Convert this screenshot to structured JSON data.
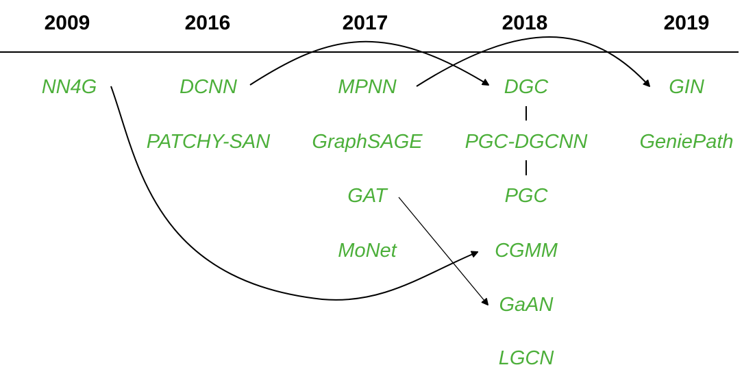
{
  "colors": {
    "model_text": "#4caf3a",
    "year_text": "#000000",
    "lines": "#000000"
  },
  "years": [
    "2009",
    "2016",
    "2017",
    "2018",
    "2019"
  ],
  "models": {
    "y2009": [
      "NN4G"
    ],
    "y2016": [
      "DCNN",
      "PATCHY-SAN"
    ],
    "y2017": [
      "MPNN",
      "GraphSAGE",
      "GAT",
      "MoNet"
    ],
    "y2018": [
      "DGC",
      "PGC-DGCNN",
      "PGC",
      "CGMM",
      "GaAN",
      "LGCN"
    ],
    "y2019": [
      "GIN",
      "GeniePath"
    ]
  },
  "links": [
    {
      "from": "DCNN",
      "to": "DGC",
      "type": "arrow"
    },
    {
      "from": "MPNN",
      "to": "GIN",
      "type": "arrow"
    },
    {
      "from": "NN4G",
      "to": "CGMM",
      "type": "arrow"
    },
    {
      "from": "GAT",
      "to": "GaAN",
      "type": "arrow"
    },
    {
      "from": "DGC",
      "to": "PGC-DGCNN",
      "type": "line"
    },
    {
      "from": "PGC-DGCNN",
      "to": "PGC",
      "type": "line"
    }
  ]
}
